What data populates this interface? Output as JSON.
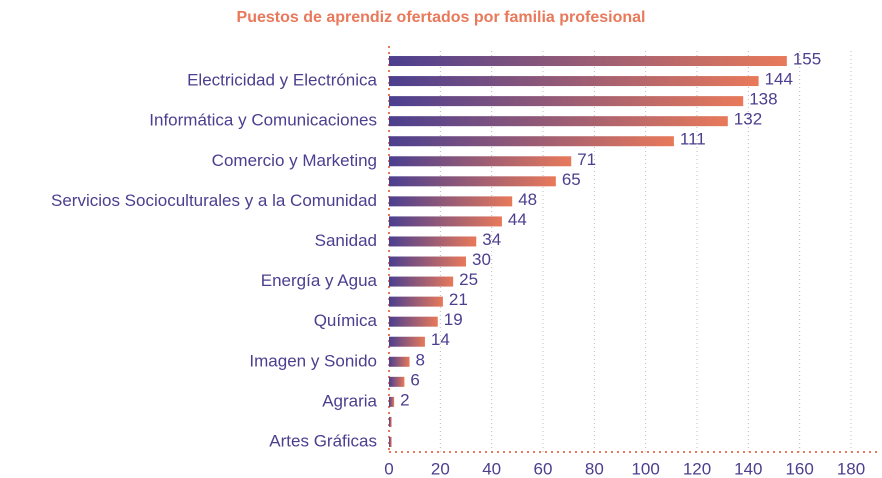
{
  "chart_data": {
    "type": "barh",
    "title": "Puestos de aprendiz ofertados por familia profesional",
    "categories": [
      null,
      "Electricidad y Electrónica",
      null,
      "Informática y Comunicaciones",
      null,
      "Comercio y Marketing",
      null,
      "Servicios Socioculturales y a la Comunidad",
      null,
      "Sanidad",
      null,
      "Energía y Agua",
      null,
      "Química",
      null,
      "Imagen y Sonido",
      null,
      "Agraria",
      null,
      "Artes Gráficas"
    ],
    "values": [
      155,
      144,
      138,
      132,
      111,
      71,
      65,
      48,
      44,
      34,
      30,
      25,
      21,
      19,
      14,
      8,
      6,
      2,
      1,
      1
    ],
    "value_labels": [
      "155",
      "144",
      "138",
      "132",
      "111",
      "71",
      "65",
      "48",
      "44",
      "34",
      "30",
      "25",
      "21",
      "19",
      "14",
      "8",
      "6",
      "2",
      null,
      null
    ],
    "gradient": [
      "#4b3f8f",
      "#e8795a"
    ],
    "xlim": [
      0,
      180
    ],
    "xticks": [
      0,
      20,
      40,
      60,
      80,
      100,
      120,
      140,
      160,
      180
    ],
    "grid": true
  }
}
